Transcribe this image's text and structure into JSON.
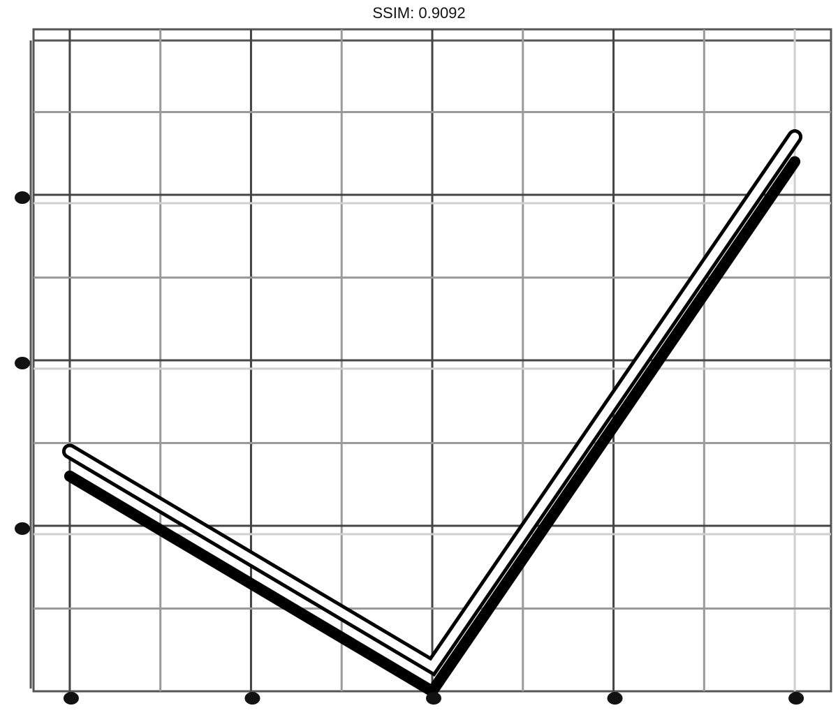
{
  "chart_data": {
    "type": "line",
    "title": "SSIM: 0.9092",
    "xlabel": "",
    "ylabel": "",
    "grid": true,
    "xlim": [
      -0.2,
      4.2
    ],
    "ylim": [
      0.0,
      4.0
    ],
    "x_major_ticks": [
      0,
      1,
      2,
      3,
      4
    ],
    "x_minor_ticks": [
      0.5,
      1.5,
      2.5,
      3.5
    ],
    "y_major_ticks": [
      1,
      2,
      3
    ],
    "y_minor_ticks": [
      0.5,
      1.5,
      2.5,
      3.5
    ],
    "series": [
      {
        "x": [
          0,
          2,
          4
        ],
        "values": [
          1.3,
          0.0,
          3.2
        ]
      },
      {
        "x": [
          0,
          2,
          4
        ],
        "values": [
          1.45,
          0.15,
          3.35
        ]
      }
    ]
  }
}
